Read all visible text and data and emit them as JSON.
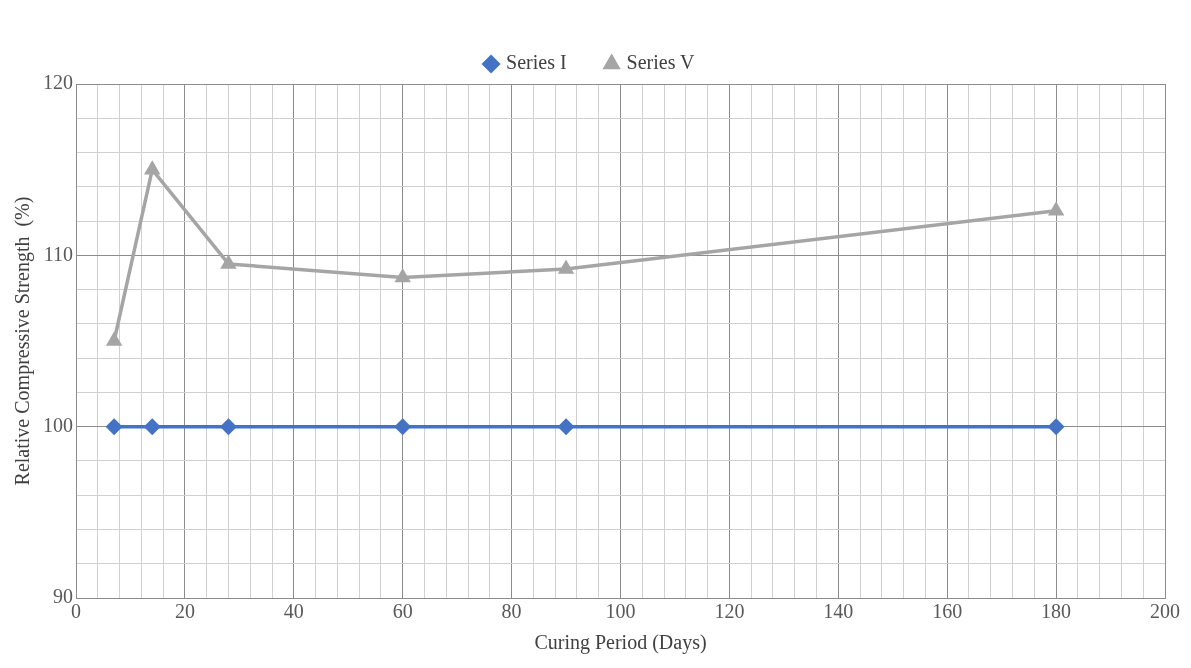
{
  "chart_data": {
    "type": "line",
    "xlabel": "Curing Period (Days)",
    "ylabel": "Relative Compressive Strength  (%)",
    "xlim": [
      0,
      200
    ],
    "ylim": [
      90,
      120
    ],
    "xticks": [
      0,
      {
        "value": 4,
        "label": null
      },
      {
        "value": 8,
        "label": null
      },
      {
        "value": 12,
        "label": null
      },
      {
        "value": 16,
        "label": null
      },
      20,
      {
        "value": 24,
        "label": null
      },
      {
        "value": 28,
        "label": null
      },
      {
        "value": 32,
        "label": null
      },
      {
        "value": 36,
        "label": null
      },
      40,
      {
        "value": 44,
        "label": null
      },
      {
        "value": 48,
        "label": null
      },
      {
        "value": 52,
        "label": null
      },
      {
        "value": 56,
        "label": null
      },
      60,
      {
        "value": 64,
        "label": null
      },
      {
        "value": 68,
        "label": null
      },
      {
        "value": 72,
        "label": null
      },
      {
        "value": 76,
        "label": null
      },
      80,
      {
        "value": 84,
        "label": null
      },
      {
        "value": 88,
        "label": null
      },
      {
        "value": 92,
        "label": null
      },
      {
        "value": 96,
        "label": null
      },
      100,
      {
        "value": 104,
        "label": null
      },
      {
        "value": 108,
        "label": null
      },
      {
        "value": 112,
        "label": null
      },
      {
        "value": 116,
        "label": null
      },
      120,
      {
        "value": 124,
        "label": null
      },
      {
        "value": 128,
        "label": null
      },
      {
        "value": 132,
        "label": null
      },
      {
        "value": 136,
        "label": null
      },
      140,
      {
        "value": 144,
        "label": null
      },
      {
        "value": 148,
        "label": null
      },
      {
        "value": 152,
        "label": null
      },
      {
        "value": 156,
        "label": null
      },
      160,
      {
        "value": 164,
        "label": null
      },
      {
        "value": 168,
        "label": null
      },
      {
        "value": 172,
        "label": null
      },
      {
        "value": 176,
        "label": null
      },
      180,
      {
        "value": 184,
        "label": null
      },
      {
        "value": 188,
        "label": null
      },
      {
        "value": 192,
        "label": null
      },
      {
        "value": 196,
        "label": null
      },
      200
    ],
    "yticks": [
      90,
      {
        "value": 92,
        "label": null
      },
      {
        "value": 94,
        "label": null
      },
      {
        "value": 96,
        "label": null
      },
      {
        "value": 98,
        "label": null
      },
      100,
      {
        "value": 102,
        "label": null
      },
      {
        "value": 104,
        "label": null
      },
      {
        "value": 106,
        "label": null
      },
      {
        "value": 108,
        "label": null
      },
      110,
      {
        "value": 112,
        "label": null
      },
      {
        "value": 114,
        "label": null
      },
      {
        "value": 116,
        "label": null
      },
      {
        "value": 118,
        "label": null
      },
      120
    ],
    "grid": true,
    "legend": "top",
    "line_style": "solid",
    "x": [
      7,
      14,
      28,
      60,
      90,
      180
    ],
    "series": [
      {
        "name": "Series I",
        "color": "#4472c4",
        "marker": "diamond",
        "values": [
          100,
          100,
          100,
          100,
          100,
          100
        ]
      },
      {
        "name": "Series V",
        "color": "#a5a5a5",
        "marker": "triangle",
        "values": [
          105.0,
          115.0,
          109.5,
          108.7,
          109.2,
          112.6
        ]
      }
    ]
  }
}
